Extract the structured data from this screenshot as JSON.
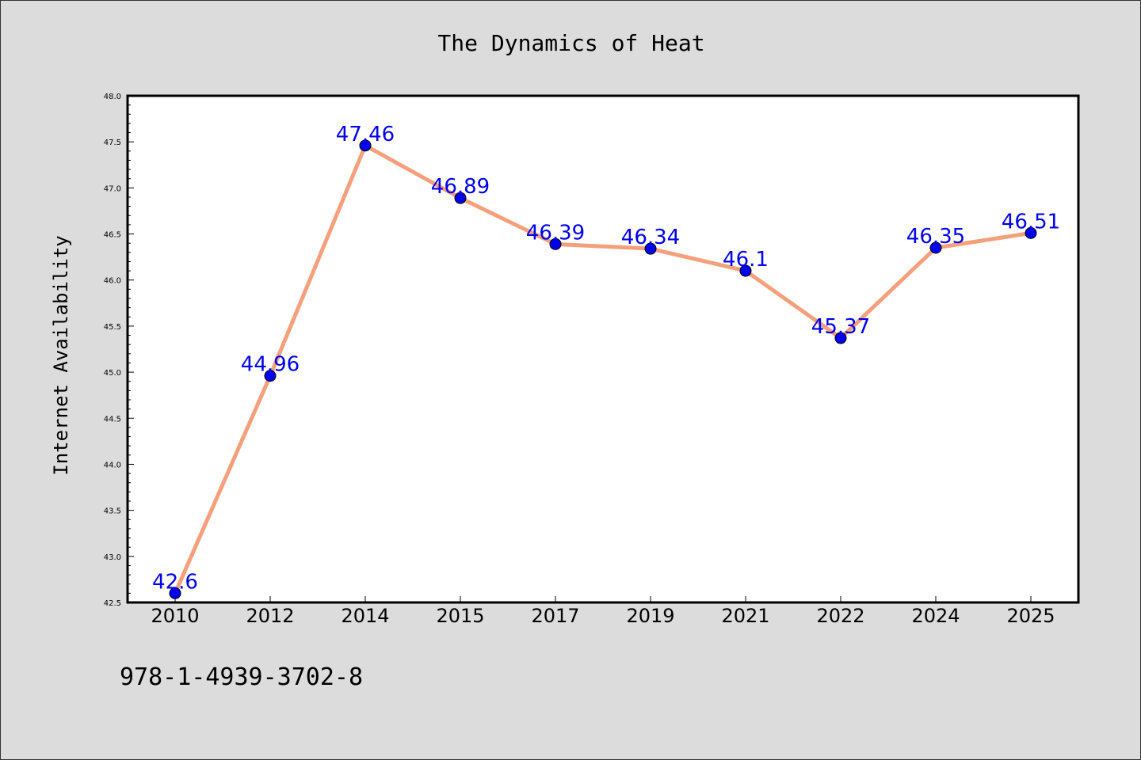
{
  "chart_data": {
    "type": "line",
    "title": "The Dynamics of Heat",
    "ylabel": "Internet Availability",
    "xlabel": "",
    "categories": [
      "2010",
      "2012",
      "2014",
      "2015",
      "2017",
      "2019",
      "2021",
      "2022",
      "2024",
      "2025"
    ],
    "series": [
      {
        "values": [
          42.6,
          44.96,
          47.46,
          46.89,
          46.39,
          46.34,
          46.1,
          45.37,
          46.35,
          46.51
        ],
        "labels": [
          "42.6",
          "44.96",
          "47.46",
          "46.89",
          "46.39",
          "46.34",
          "46.1",
          "45.37",
          "46.35",
          "46.51"
        ]
      }
    ],
    "ylim": [
      42.5,
      48.0
    ],
    "yticks": [
      "42.5",
      "43.0",
      "43.5",
      "44.0",
      "44.5",
      "45.0",
      "45.5",
      "46.0",
      "46.5",
      "47.0",
      "47.5",
      "48.0"
    ],
    "grid": false,
    "legend": "none",
    "line_color": "#f4a07c",
    "marker_color": "#0000ee",
    "label_color": "#0000ee",
    "background_color": "#dcdcdc",
    "plot_background": "#ffffff"
  },
  "footer": {
    "code": "978-1-4939-3702-8"
  }
}
